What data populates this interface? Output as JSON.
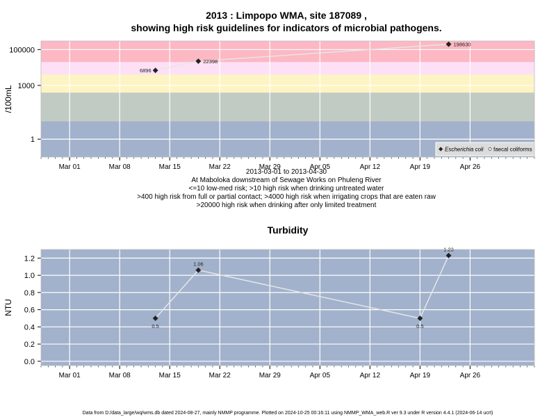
{
  "chart_data": [
    {
      "type": "line",
      "title_line1": "2013 : Limpopo WMA, site 187089 ,",
      "title_line2": "showing high risk guidelines for indicators of microbial pathogens.",
      "ylabel": "/100mL",
      "yscale": "log",
      "ylim": [
        0.1,
        300000
      ],
      "yticks": [
        1,
        1000,
        100000
      ],
      "ytick_labels": [
        "1",
        "1000",
        "100000"
      ],
      "x_range": [
        "2013-02-25",
        "2013-05-05"
      ],
      "xticks": [
        {
          "date": "2013-03-01",
          "label": "Mar 01"
        },
        {
          "date": "2013-03-08",
          "label": "Mar 08"
        },
        {
          "date": "2013-03-15",
          "label": "Mar 15"
        },
        {
          "date": "2013-03-22",
          "label": "Mar 22"
        },
        {
          "date": "2013-03-29",
          "label": "Mar 29"
        },
        {
          "date": "2013-04-05",
          "label": "Apr 05"
        },
        {
          "date": "2013-04-12",
          "label": "Apr 12"
        },
        {
          "date": "2013-04-19",
          "label": "Apr 19"
        },
        {
          "date": "2013-04-26",
          "label": "Apr 26"
        }
      ],
      "bands": [
        {
          "from": 0.1,
          "to": 10,
          "color": "#a2b2cc"
        },
        {
          "from": 10,
          "to": 400,
          "color": "#c2cbc3"
        },
        {
          "from": 400,
          "to": 4000,
          "color": "#fdf4c3"
        },
        {
          "from": 4000,
          "to": 20000,
          "color": "#fde0f5"
        },
        {
          "from": 20000,
          "to": 300000,
          "color": "#fcb8c3"
        }
      ],
      "series": [
        {
          "name": "Escherichia coli",
          "points": [
            {
              "date": "2013-03-13",
              "value": 6896,
              "label": "6896"
            },
            {
              "date": "2013-03-19",
              "value": 22398,
              "label": "22398"
            },
            {
              "date": "2013-04-23",
              "value": 198630,
              "label": "198630"
            }
          ]
        },
        {
          "name": "faecal coliforms",
          "points": []
        }
      ],
      "legend_position": "bottom-right",
      "caption_lines": [
        "2013-03-01 to 2013-04-30",
        "At Maboloka downstream of Sewage Works on Phuleng River",
        "<=10 low-med risk; >10 high risk when drinking untreated water",
        ">400 high risk from full or partial contact; >4000 high risk when irrigating crops that are eaten raw",
        ">20000 high risk when drinking after only limited treatment"
      ]
    },
    {
      "type": "line",
      "title": "Turbidity",
      "ylabel": "NTU",
      "ylim": [
        -0.05,
        1.3
      ],
      "yticks": [
        0,
        0.2,
        0.4,
        0.6,
        0.8,
        1,
        1.2
      ],
      "ytick_labels": [
        "0.0",
        "0.2",
        "0.4",
        "0.6",
        "0.8",
        "1.0",
        "1.2"
      ],
      "x_range": [
        "2013-02-25",
        "2013-05-05"
      ],
      "xticks": [
        {
          "date": "2013-03-01",
          "label": "Mar 01"
        },
        {
          "date": "2013-03-08",
          "label": "Mar 08"
        },
        {
          "date": "2013-03-15",
          "label": "Mar 15"
        },
        {
          "date": "2013-03-22",
          "label": "Mar 22"
        },
        {
          "date": "2013-03-29",
          "label": "Mar 29"
        },
        {
          "date": "2013-04-05",
          "label": "Apr 05"
        },
        {
          "date": "2013-04-12",
          "label": "Apr 12"
        },
        {
          "date": "2013-04-19",
          "label": "Apr 19"
        },
        {
          "date": "2013-04-26",
          "label": "Apr 26"
        }
      ],
      "background": "#a2b2cc",
      "series": [
        {
          "points": [
            {
              "date": "2013-03-13",
              "value": 0.5,
              "label": "0.5"
            },
            {
              "date": "2013-03-19",
              "value": 1.06,
              "label": "1.06"
            },
            {
              "date": "2013-04-19",
              "value": 0.5,
              "label": "0.5"
            },
            {
              "date": "2013-04-23",
              "value": 1.23,
              "label": "1.23"
            }
          ]
        }
      ]
    }
  ],
  "footer": "Data from D:/data_large/wq/wms.db dated 2024-08-27, mainly NMMP programme. Plotted on 2024-10-25 00:16:11 using NMMP_WMA_web.R ver 9.3 under R version 4.4.1 (2024-06-14 ucrt)"
}
